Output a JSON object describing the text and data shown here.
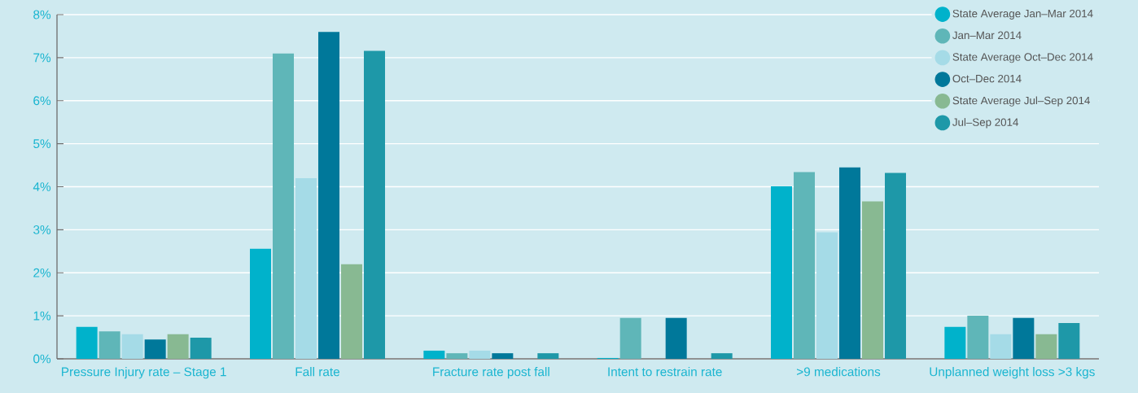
{
  "chart_data": {
    "type": "bar",
    "categories": [
      "Pressure Injury rate – Stage 1",
      "Fall rate",
      "Fracture rate post fall",
      "Intent to restrain rate",
      ">9 medications",
      "Unplanned weight loss >3 kgs"
    ],
    "series": [
      {
        "name": "State Average Jan–Mar 2014",
        "color": "#00b2cb",
        "values": [
          0.74,
          2.56,
          0.19,
          0.02,
          4.01,
          0.74
        ]
      },
      {
        "name": "Jan–Mar 2014",
        "color": "#5fb6b8",
        "values": [
          0.64,
          7.1,
          0.13,
          0.95,
          4.34,
          1.0
        ]
      },
      {
        "name": "State Average Oct–Dec 2014",
        "color": "#a5dbe7",
        "values": [
          0.57,
          4.2,
          0.19,
          0,
          2.94,
          0.57
        ]
      },
      {
        "name": "Oct–Dec 2014",
        "color": "#00789a",
        "values": [
          0.45,
          7.6,
          0.13,
          0.95,
          4.45,
          0.95
        ]
      },
      {
        "name": "State Average Jul–Sep 2014",
        "color": "#88b992",
        "values": [
          0.57,
          2.2,
          0,
          0,
          3.66,
          0.57
        ]
      },
      {
        "name": "Jul–Sep 2014",
        "color": "#1e98a8",
        "values": [
          0.49,
          7.16,
          0.13,
          0.13,
          4.32,
          0.83
        ]
      }
    ],
    "ylim": [
      0,
      8
    ],
    "yticks": [
      {
        "value": 0,
        "label": "0%"
      },
      {
        "value": 1,
        "label": "1%"
      },
      {
        "value": 2,
        "label": "2%"
      },
      {
        "value": 3,
        "label": "3%"
      },
      {
        "value": 4,
        "label": "4%"
      },
      {
        "value": 5,
        "label": "5%"
      },
      {
        "value": 6,
        "label": "6%"
      },
      {
        "value": 7,
        "label": "7%"
      },
      {
        "value": 8,
        "label": "8%"
      }
    ],
    "grid": "y",
    "legend": "top right"
  }
}
